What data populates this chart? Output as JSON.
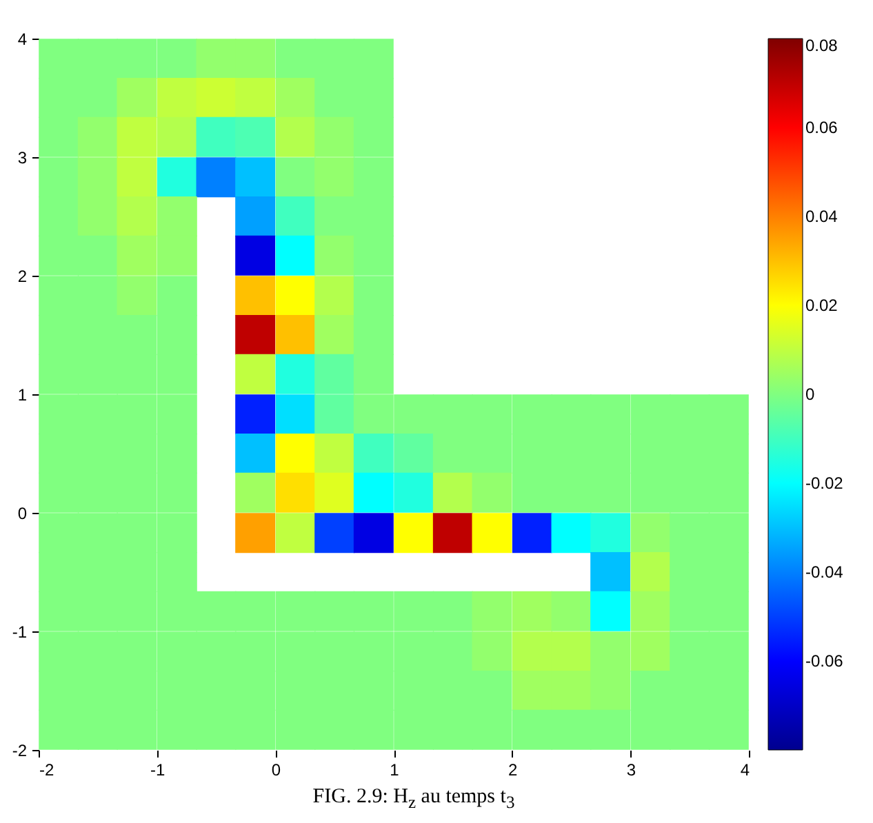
{
  "chart_data": {
    "type": "scatter",
    "title": "FIG. 2.9: H$_{z}$ au temps t$_{3}$",
    "marker": "square",
    "x": [
      -1.83,
      -1.5,
      -1.17,
      -0.83,
      -0.5,
      -0.17,
      0.17,
      0.5,
      0.83,
      -1.83,
      -1.5,
      -1.17,
      -0.83,
      -0.5,
      -0.17,
      0.17,
      0.5,
      0.83,
      -1.83,
      -1.5,
      -1.17,
      -0.83,
      -0.5,
      -0.17,
      0.17,
      0.5,
      0.83,
      -1.83,
      -1.5,
      -1.17,
      -0.83,
      -0.5,
      -0.17,
      0.17,
      0.5,
      0.83,
      -1.83,
      -1.5,
      -1.17,
      -0.83,
      -0.17,
      0.17,
      0.5,
      0.83,
      -1.83,
      -1.5,
      -1.17,
      -0.83,
      -0.17,
      0.17,
      0.5,
      0.83,
      -1.83,
      -1.5,
      -1.17,
      -0.83,
      -0.17,
      0.17,
      0.5,
      0.83,
      -1.83,
      -1.5,
      -1.17,
      -0.83,
      -0.17,
      0.17,
      0.5,
      0.83,
      -1.83,
      -1.5,
      -1.17,
      -0.83,
      -0.17,
      0.17,
      0.5,
      0.83,
      -1.83,
      -1.5,
      -1.17,
      -0.83,
      -0.17,
      0.17,
      0.5,
      0.83,
      1.17,
      1.5,
      1.83,
      2.17,
      2.5,
      2.83,
      3.17,
      3.5,
      3.83,
      -1.83,
      -1.5,
      -1.17,
      -0.83,
      -0.17,
      0.17,
      0.5,
      0.83,
      1.17,
      1.5,
      1.83,
      2.17,
      2.5,
      2.83,
      3.17,
      3.5,
      3.83,
      -1.83,
      -1.5,
      -1.17,
      -0.83,
      -0.17,
      0.17,
      0.5,
      0.83,
      1.17,
      1.5,
      1.83,
      2.17,
      2.5,
      2.83,
      3.17,
      3.5,
      3.83,
      -1.83,
      -1.5,
      -1.17,
      -0.83,
      -0.17,
      0.17,
      0.5,
      0.83,
      1.17,
      1.5,
      1.83,
      2.17,
      2.5,
      2.83,
      3.17,
      3.5,
      3.83,
      -1.83,
      -1.5,
      -1.17,
      -0.83,
      2.83,
      3.17,
      3.5,
      3.83,
      -1.83,
      -1.5,
      -1.17,
      -0.83,
      -0.5,
      -0.17,
      0.17,
      0.5,
      0.83,
      1.17,
      1.5,
      1.83,
      2.17,
      2.5,
      2.83,
      3.17,
      3.5,
      3.83,
      -1.83,
      -1.5,
      -1.17,
      -0.83,
      -0.5,
      -0.17,
      0.17,
      0.5,
      0.83,
      1.17,
      1.5,
      1.83,
      2.17,
      2.5,
      2.83,
      3.17,
      3.5,
      3.83,
      -1.83,
      -1.5,
      -1.17,
      -0.83,
      -0.5,
      -0.17,
      0.17,
      0.5,
      0.83,
      1.17,
      1.5,
      1.83,
      2.17,
      2.5,
      2.83,
      3.17,
      3.5,
      3.83,
      -1.83,
      -1.5,
      -1.17,
      -0.83,
      -0.5,
      -0.17,
      0.17,
      0.5,
      0.83,
      1.17,
      1.5,
      1.83,
      2.17,
      2.5,
      2.83,
      3.17,
      3.5,
      3.83
    ],
    "values": [
      3.83,
      3.83,
      3.83,
      3.83,
      3.83,
      3.83,
      3.83,
      3.83,
      3.83,
      3.5,
      3.5,
      3.5,
      3.5,
      3.5,
      3.5,
      3.5,
      3.5,
      3.5,
      3.17,
      3.17,
      3.17,
      3.17,
      3.17,
      3.17,
      3.17,
      3.17,
      3.17,
      2.83,
      2.83,
      2.83,
      2.83,
      2.83,
      2.83,
      2.83,
      2.83,
      2.83,
      2.5,
      2.5,
      2.5,
      2.5,
      2.5,
      2.5,
      2.5,
      2.5,
      2.17,
      2.17,
      2.17,
      2.17,
      2.17,
      2.17,
      2.17,
      2.17,
      1.83,
      1.83,
      1.83,
      1.83,
      1.83,
      1.83,
      1.83,
      1.83,
      1.5,
      1.5,
      1.5,
      1.5,
      1.5,
      1.5,
      1.5,
      1.5,
      1.17,
      1.17,
      1.17,
      1.17,
      1.17,
      1.17,
      1.17,
      1.17,
      0.83,
      0.83,
      0.83,
      0.83,
      0.83,
      0.83,
      0.83,
      0.83,
      0.83,
      0.83,
      0.83,
      0.83,
      0.83,
      0.83,
      0.83,
      0.83,
      0.83,
      0.5,
      0.5,
      0.5,
      0.5,
      0.5,
      0.5,
      0.5,
      0.5,
      0.5,
      0.5,
      0.5,
      0.5,
      0.5,
      0.5,
      0.5,
      0.5,
      0.5,
      0.17,
      0.17,
      0.17,
      0.17,
      0.17,
      0.17,
      0.17,
      0.17,
      0.17,
      0.17,
      0.17,
      0.17,
      0.17,
      0.17,
      0.17,
      0.17,
      0.17,
      -0.17,
      -0.17,
      -0.17,
      -0.17,
      -0.17,
      -0.17,
      -0.17,
      -0.17,
      -0.17,
      -0.17,
      -0.17,
      -0.17,
      -0.17,
      -0.17,
      -0.17,
      -0.17,
      -0.17,
      -0.5,
      -0.5,
      -0.5,
      -0.5,
      -0.5,
      -0.5,
      -0.5,
      -0.5,
      -0.83,
      -0.83,
      -0.83,
      -0.83,
      -0.83,
      -0.83,
      -0.83,
      -0.83,
      -0.83,
      -0.83,
      -0.83,
      -0.83,
      -0.83,
      -0.83,
      -0.83,
      -0.83,
      -0.83,
      -0.83,
      -1.17,
      -1.17,
      -1.17,
      -1.17,
      -1.17,
      -1.17,
      -1.17,
      -1.17,
      -1.17,
      -1.17,
      -1.17,
      -1.17,
      -1.17,
      -1.17,
      -1.17,
      -1.17,
      -1.17,
      -1.17,
      -1.5,
      -1.5,
      -1.5,
      -1.5,
      -1.5,
      -1.5,
      -1.5,
      -1.5,
      -1.5,
      -1.5,
      -1.5,
      -1.5,
      -1.5,
      -1.5,
      -1.5,
      -1.5,
      -1.5,
      -1.5,
      -1.83,
      -1.83,
      -1.83,
      -1.83,
      -1.83,
      -1.83,
      -1.83,
      -1.83,
      -1.83,
      -1.83,
      -1.83,
      -1.83,
      -1.83,
      -1.83,
      -1.83,
      -1.83,
      -1.83,
      -1.83
    ],
    "cvalues": [
      0,
      0,
      0,
      0,
      0.003,
      0.003,
      0,
      0,
      0,
      0,
      0,
      0.005,
      0.01,
      0.012,
      0.01,
      0.005,
      0,
      0,
      0,
      0.003,
      0.01,
      0.008,
      -0.01,
      -0.008,
      0.008,
      0.003,
      0,
      0,
      0.003,
      0.01,
      -0.015,
      -0.04,
      -0.03,
      0,
      0.003,
      0,
      0,
      0.003,
      0.008,
      0.003,
      -0.035,
      -0.01,
      0,
      0,
      0,
      0,
      0.005,
      0.003,
      -0.065,
      -0.02,
      0.003,
      0,
      0,
      0,
      0.003,
      0,
      0.03,
      0.02,
      0.008,
      0,
      0,
      0,
      0,
      0,
      0.07,
      0.03,
      0.005,
      0,
      0,
      0,
      0,
      0,
      0.01,
      -0.015,
      -0.005,
      0,
      0,
      0,
      0,
      0,
      -0.055,
      -0.025,
      -0.005,
      0,
      0,
      0,
      0,
      0,
      0,
      0,
      0,
      0,
      0,
      0,
      0,
      0,
      0,
      -0.03,
      0.02,
      0.01,
      -0.01,
      -0.005,
      0,
      0,
      0,
      0,
      0,
      0,
      0,
      0,
      0,
      0,
      0,
      0,
      0.005,
      0.025,
      0.015,
      -0.02,
      -0.015,
      0.008,
      0.003,
      0,
      0,
      0,
      0,
      0,
      0,
      0,
      0,
      0,
      0,
      0.035,
      0.01,
      -0.05,
      -0.065,
      0.02,
      0.07,
      0.02,
      -0.055,
      -0.02,
      -0.015,
      0.003,
      0,
      0,
      0,
      0,
      0,
      0,
      -0.03,
      0.008,
      0,
      0,
      0,
      0,
      0,
      0,
      0,
      0,
      0,
      0,
      0,
      0,
      0,
      0.003,
      0.005,
      0.003,
      -0.02,
      0.005,
      0,
      0,
      0,
      0,
      0,
      0,
      0,
      0,
      0,
      0,
      0,
      0,
      0,
      0.003,
      0.008,
      0.008,
      0.003,
      0.005,
      0,
      0,
      0,
      0,
      0,
      0,
      0,
      0,
      0,
      0,
      0,
      0,
      0,
      0,
      0.005,
      0.005,
      0.003,
      0,
      0,
      0,
      0,
      0,
      0,
      0,
      0,
      0,
      0,
      0,
      0,
      0,
      0,
      0,
      0,
      0,
      0,
      0,
      0,
      0
    ],
    "xlim": [
      -2,
      4
    ],
    "xticks": [
      -2,
      -1,
      0,
      1,
      2,
      3,
      4
    ],
    "ylim": [
      -2,
      4
    ],
    "yticks": [
      -2,
      -1,
      0,
      1,
      2,
      3,
      4
    ],
    "clim": [
      -0.08,
      0.08
    ],
    "cticks": [
      -0.06,
      -0.04,
      -0.02,
      0,
      0.02,
      0.04,
      0.06,
      0.08
    ]
  }
}
